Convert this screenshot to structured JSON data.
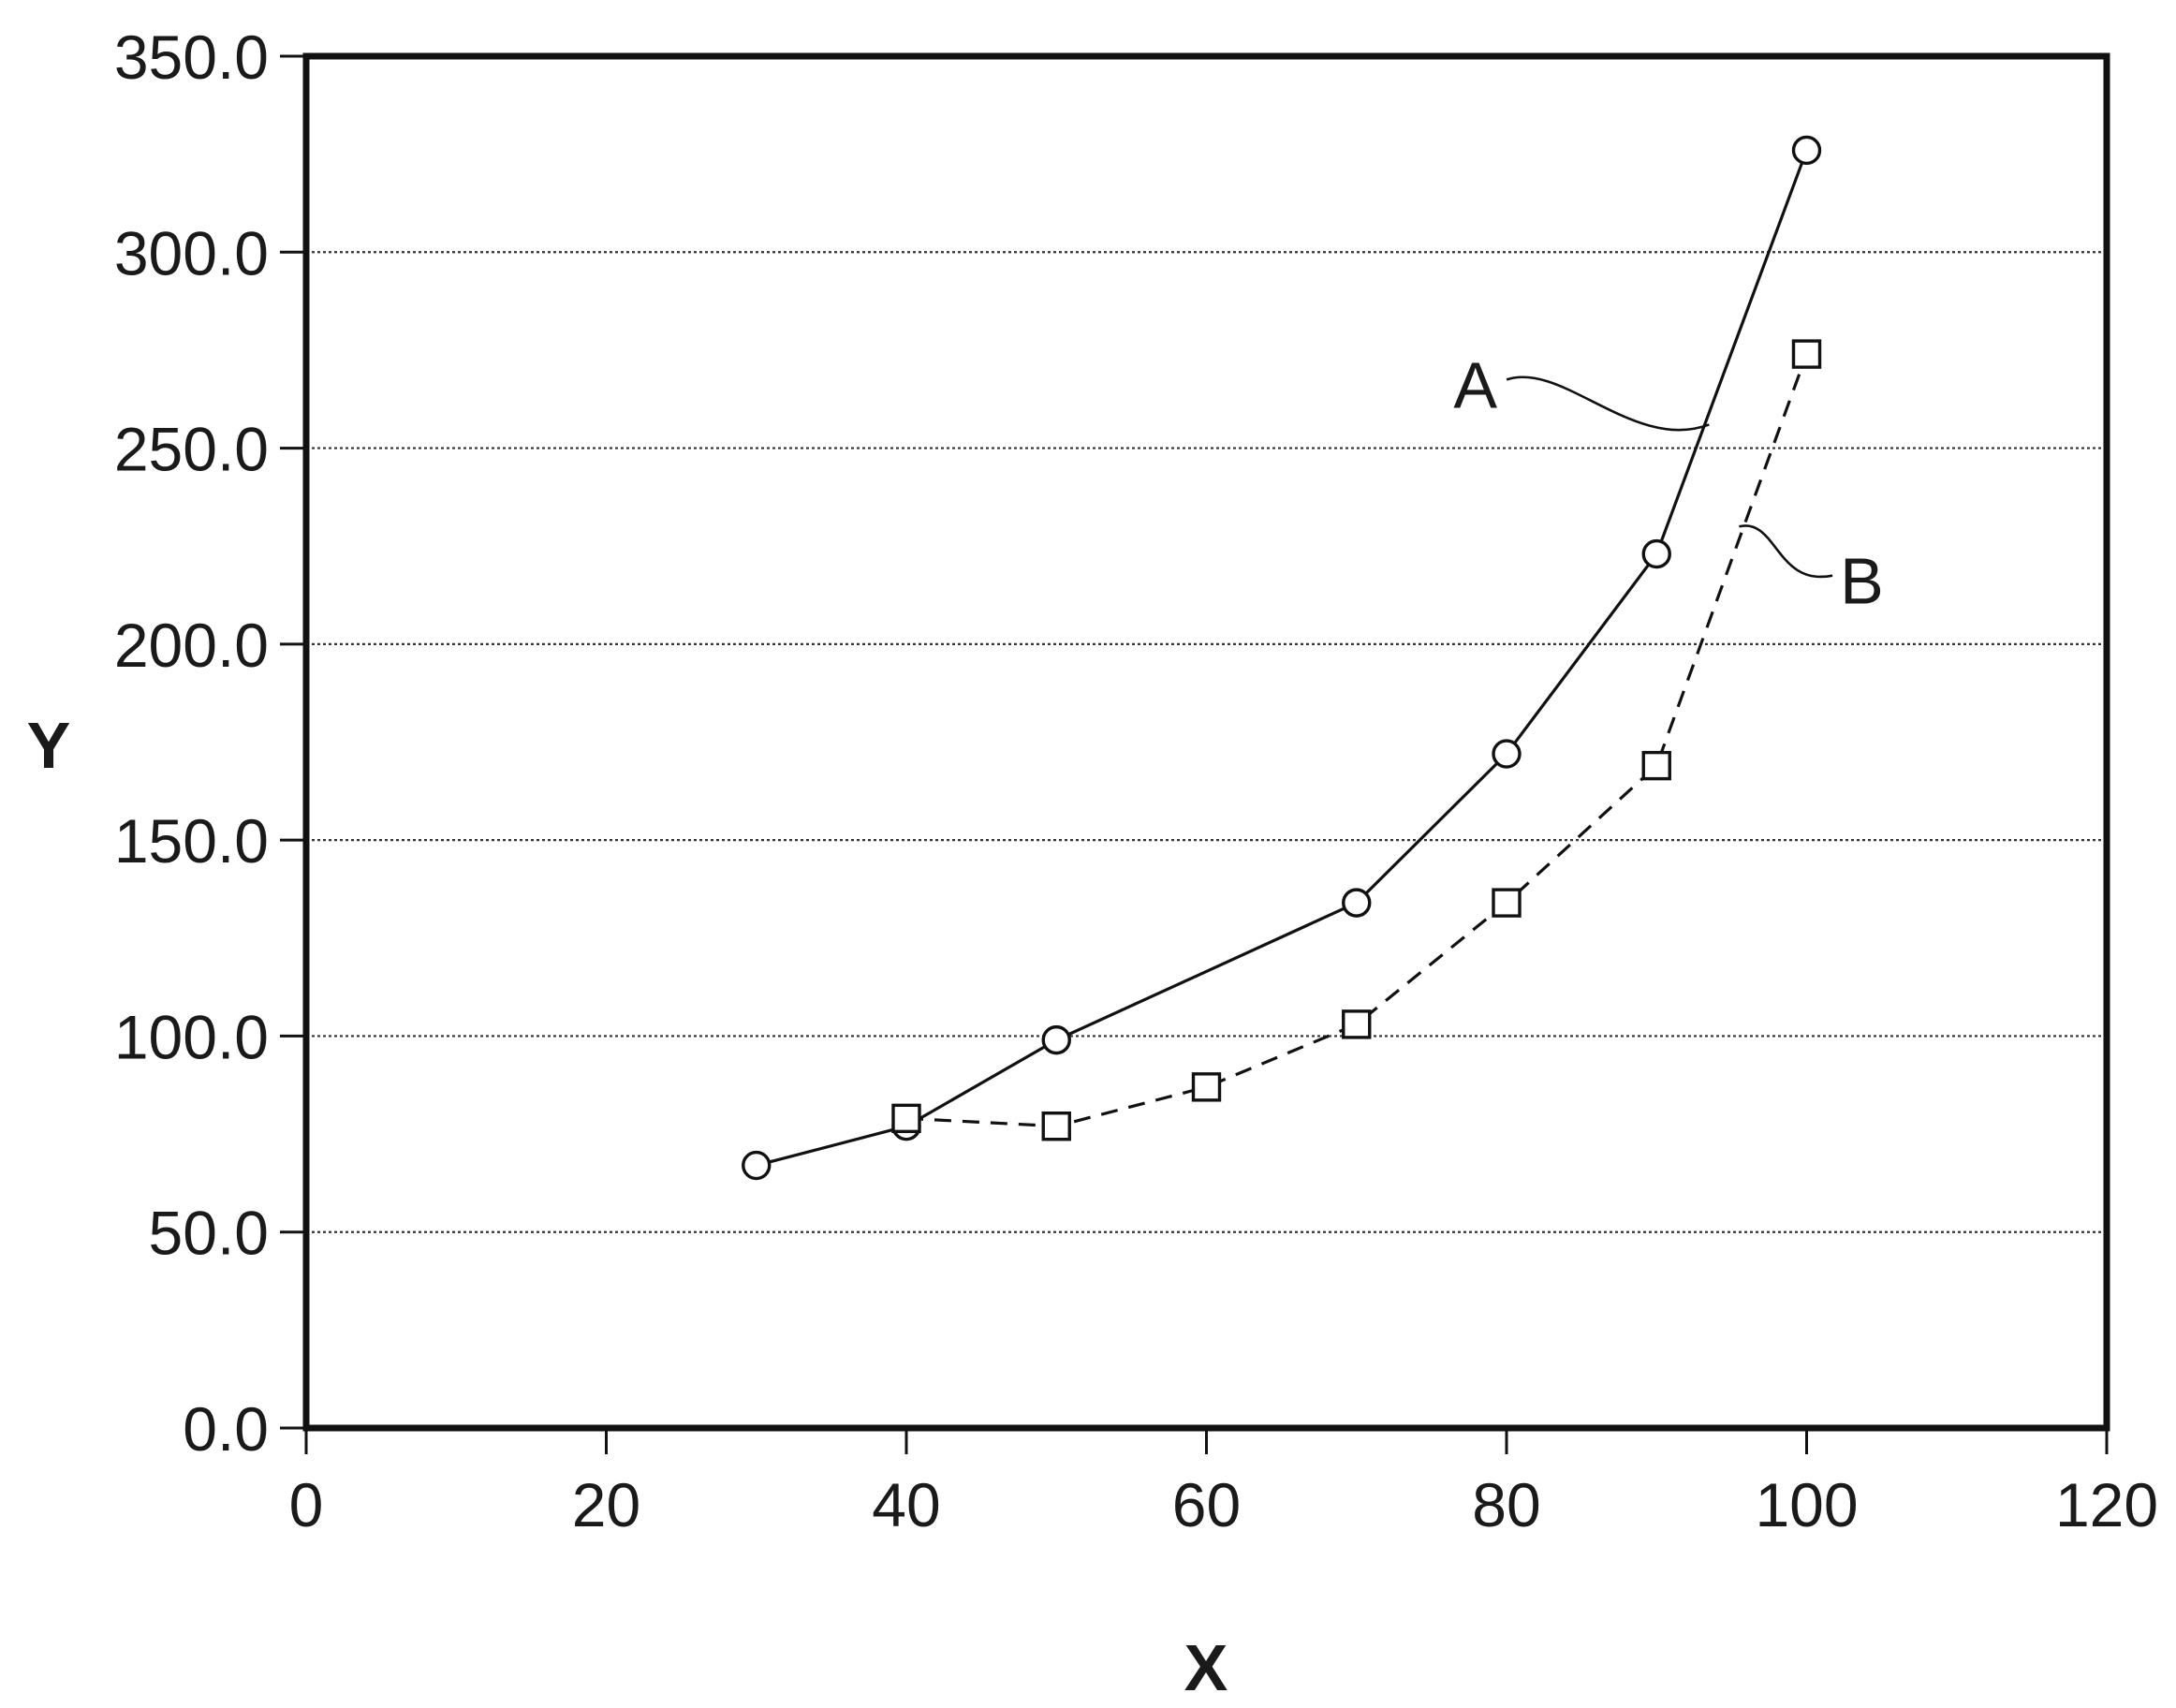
{
  "chart_data": {
    "type": "line",
    "title": "",
    "xlabel": "X",
    "ylabel": "Y",
    "xlim": [
      0,
      120
    ],
    "ylim": [
      0,
      350
    ],
    "x_ticks": [
      0,
      20,
      40,
      60,
      80,
      100,
      120
    ],
    "x_tick_labels": [
      "0",
      "20",
      "40",
      "60",
      "80",
      "100",
      "120"
    ],
    "y_ticks": [
      0,
      50,
      100,
      150,
      200,
      250,
      300,
      350
    ],
    "y_tick_labels": [
      "0.0",
      "50.0",
      "100.0",
      "150.0",
      "200.0",
      "250.0",
      "300.0",
      "350.0"
    ],
    "grid": "horizontal",
    "legend": "none",
    "series": [
      {
        "name": "A",
        "marker": "circle",
        "line_style": "solid",
        "x": [
          30,
          40,
          50,
          70,
          80,
          90,
          100
        ],
        "y": [
          67,
          77,
          99,
          134,
          172,
          223,
          326
        ]
      },
      {
        "name": "B",
        "marker": "square",
        "line_style": "dashed",
        "x": [
          40,
          50,
          60,
          70,
          80,
          90,
          100
        ],
        "y": [
          79,
          77,
          87,
          103,
          134,
          169,
          274
        ]
      }
    ]
  }
}
